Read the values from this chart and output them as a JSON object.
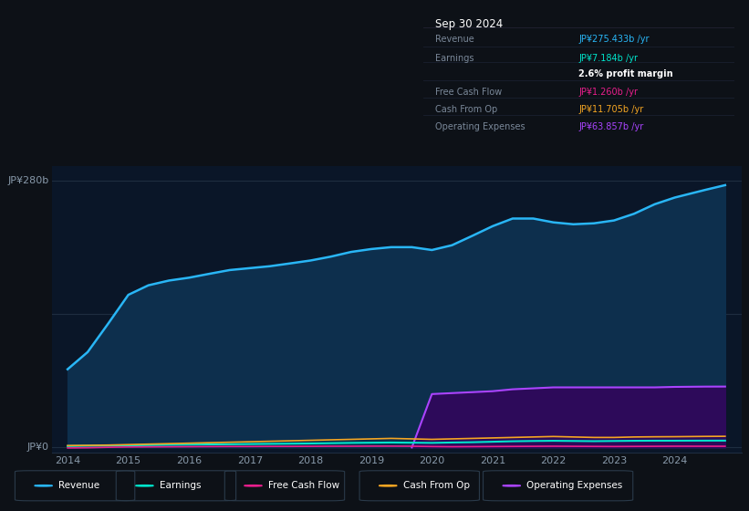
{
  "bg_color": "#0d1117",
  "plot_bg_color": "#0a1628",
  "title": "Sep 30 2024",
  "years": [
    2014,
    2014.33,
    2014.67,
    2015,
    2015.33,
    2015.67,
    2016,
    2016.33,
    2016.67,
    2017,
    2017.33,
    2017.67,
    2018,
    2018.33,
    2018.67,
    2019,
    2019.33,
    2019.67,
    2020,
    2020.33,
    2020.67,
    2021,
    2021.33,
    2021.67,
    2022,
    2022.33,
    2022.67,
    2023,
    2023.33,
    2023.67,
    2024,
    2024.5,
    2024.83
  ],
  "revenue": [
    82,
    100,
    130,
    160,
    170,
    175,
    178,
    182,
    186,
    188,
    190,
    193,
    196,
    200,
    205,
    208,
    210,
    210,
    207,
    212,
    222,
    232,
    240,
    240,
    236,
    234,
    235,
    238,
    245,
    255,
    262,
    270,
    275
  ],
  "earnings": [
    1.5,
    1.8,
    2.0,
    2.2,
    2.5,
    2.8,
    3.0,
    3.2,
    3.4,
    3.6,
    3.8,
    4.0,
    4.2,
    4.5,
    4.8,
    5.0,
    5.2,
    5.0,
    4.8,
    5.2,
    5.5,
    6.0,
    6.5,
    6.8,
    7.0,
    6.8,
    6.6,
    6.8,
    7.0,
    7.1,
    7.1,
    7.18,
    7.184
  ],
  "free_cash_flow": [
    -0.5,
    -0.3,
    0.2,
    0.5,
    0.6,
    0.7,
    0.8,
    0.9,
    1.0,
    1.0,
    1.1,
    1.1,
    1.2,
    1.3,
    1.3,
    1.4,
    1.4,
    1.3,
    1.0,
    0.8,
    0.9,
    1.0,
    1.1,
    1.2,
    1.3,
    1.2,
    1.1,
    1.0,
    1.1,
    1.2,
    1.3,
    1.26,
    1.26
  ],
  "cash_from_op": [
    2.0,
    2.2,
    2.5,
    3.0,
    3.5,
    4.0,
    4.5,
    5.0,
    5.5,
    6.0,
    6.5,
    7.0,
    7.5,
    8.0,
    8.5,
    9.0,
    9.5,
    9.0,
    8.5,
    9.0,
    9.5,
    10.0,
    10.5,
    11.0,
    11.5,
    11.0,
    10.5,
    10.5,
    11.0,
    11.2,
    11.3,
    11.6,
    11.705
  ],
  "operating_expenses_x": [
    2019.67,
    2020,
    2020.33,
    2020.67,
    2021,
    2021.33,
    2021.67,
    2022,
    2022.33,
    2022.67,
    2023,
    2023.33,
    2023.67,
    2024,
    2024.5,
    2024.83
  ],
  "operating_expenses_y": [
    0,
    56,
    57,
    58,
    59,
    61,
    62,
    63,
    63,
    63,
    63,
    63,
    63,
    63.5,
    63.8,
    63.857
  ],
  "revenue_color": "#29b6f6",
  "revenue_fill": "#0d2f4d",
  "earnings_color": "#00e5cc",
  "free_cash_flow_color": "#e91e8c",
  "cash_from_op_color": "#f5a623",
  "operating_expenses_color": "#aa44ff",
  "operating_expenses_fill": "#2d0a5a",
  "ylabel_top": "JP¥280b",
  "ylabel_bottom": "JP¥0",
  "grid_color": "#1e2d40",
  "text_color": "#8899aa",
  "legend_items": [
    "Revenue",
    "Earnings",
    "Free Cash Flow",
    "Cash From Op",
    "Operating Expenses"
  ],
  "legend_colors": [
    "#29b6f6",
    "#00e5cc",
    "#e91e8c",
    "#f5a623",
    "#aa44ff"
  ],
  "table_rows": [
    {
      "label": "Revenue",
      "value": "JP¥275.433b /yr",
      "color": "#29b6f6"
    },
    {
      "label": "Earnings",
      "value": "JP¥7.184b /yr",
      "color": "#00e5cc"
    },
    {
      "label": "",
      "value": "2.6% profit margin",
      "color": "#ffffff",
      "bold": true
    },
    {
      "label": "Free Cash Flow",
      "value": "JP¥1.260b /yr",
      "color": "#e91e8c"
    },
    {
      "label": "Cash From Op",
      "value": "JP¥11.705b /yr",
      "color": "#f5a623"
    },
    {
      "label": "Operating Expenses",
      "value": "JP¥63.857b /yr",
      "color": "#aa44ff"
    }
  ]
}
